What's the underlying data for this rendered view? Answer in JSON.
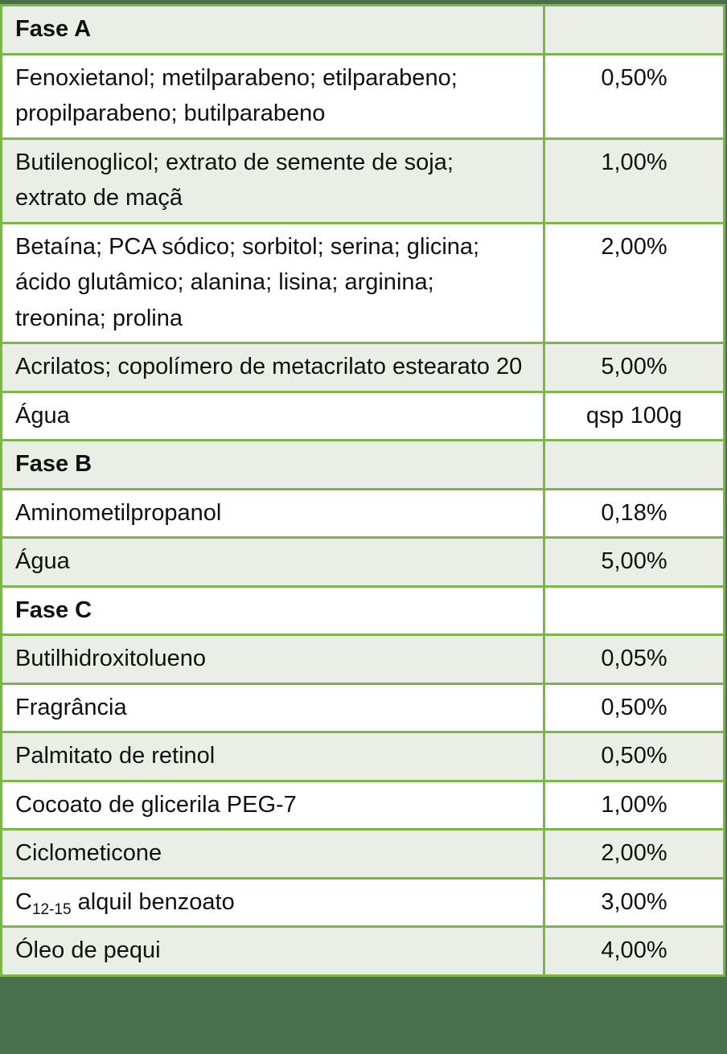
{
  "table": {
    "colors": {
      "frame": "#4a7049",
      "border": "#7ab648",
      "shaded_row": "#e9efe6",
      "plain_row": "#ffffff"
    },
    "rows": [
      {
        "type": "phase",
        "name": "Fase A",
        "value": ""
      },
      {
        "type": "item",
        "name": "Fenoxietanol; metilparabeno; etilparabeno; propilparabeno; butilparabeno",
        "value": "0,50%"
      },
      {
        "type": "item",
        "name": "Butilenoglicol; extrato de semente de soja; extrato de maçã",
        "value": "1,00%"
      },
      {
        "type": "item",
        "name": "Betaína; PCA sódico; sorbitol; serina; glicina; ácido glutâmico; alanina; lisina; arginina; treonina; prolina",
        "value": "2,00%"
      },
      {
        "type": "item",
        "name": "Acrilatos; copolímero de metacrilato estearato 20",
        "value": "5,00%"
      },
      {
        "type": "item",
        "name": "Água",
        "value": "qsp 100g"
      },
      {
        "type": "phase",
        "name": "Fase B",
        "value": ""
      },
      {
        "type": "item",
        "name": "Aminometilpropanol",
        "value": "0,18%"
      },
      {
        "type": "item",
        "name": "Água",
        "value": "5,00%"
      },
      {
        "type": "phase",
        "name": "Fase C",
        "value": ""
      },
      {
        "type": "item",
        "name": "Butilhidroxitolueno",
        "value": "0,05%"
      },
      {
        "type": "item",
        "name": "Fragrância",
        "value": "0,50%"
      },
      {
        "type": "item",
        "name": "Palmitato de retinol",
        "value": "0,50%"
      },
      {
        "type": "item",
        "name": "Cocoato de glicerila PEG-7",
        "value": "1,00%"
      },
      {
        "type": "item",
        "name": "Ciclometicone",
        "value": "2,00%"
      },
      {
        "type": "item",
        "name_prefix": "C",
        "name_sub": "12-15",
        "name_suffix": " alquil benzoato",
        "value": "3,00%"
      },
      {
        "type": "item",
        "name": "Óleo de pequi",
        "value": "4,00%"
      }
    ]
  }
}
